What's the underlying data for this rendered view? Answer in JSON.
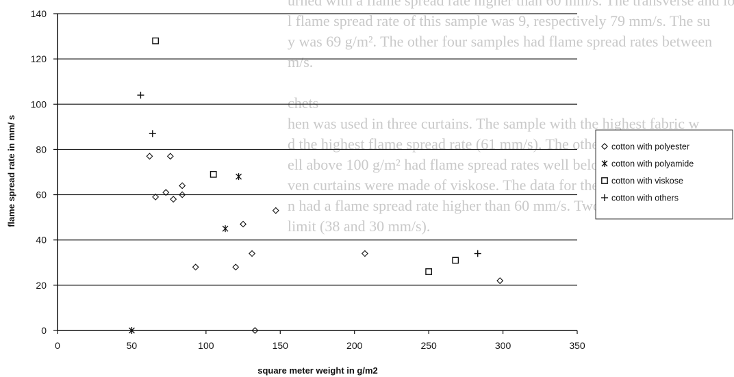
{
  "background_text": {
    "lines": [
      "urned with a flame spread rate higher than 60 mm/s. The transverse and lo",
      "l flame spread rate of this sample was 9, respectively 79 mm/s. The su",
      "y was 69 g/m². The other four samples had flame spread rates between",
      "m/s.",
      "",
      "chets",
      "hen was used in three curtains. The sample with the highest fabric w",
      "d the highest flame spread rate (61 mm/s). The other two with surface",
      "ell above 100 g/m² had flame spread rates well below the limit.",
      "ven curtains were made of viskose. The data for these are given in table 1",
      "n had a flame spread rate higher than 60 mm/s. Two samples were in the",
      "limit (38 and 30 mm/s)."
    ]
  },
  "chart_data": {
    "type": "scatter",
    "xlabel": "square meter weight in g/m2",
    "ylabel": "flame spread rate in mm/ s",
    "xlim": [
      0,
      350
    ],
    "ylim": [
      0,
      140
    ],
    "x_ticks": [
      0,
      50,
      100,
      150,
      200,
      250,
      300,
      350
    ],
    "y_ticks": [
      0,
      20,
      40,
      60,
      80,
      100,
      120,
      140
    ],
    "grid": "horizontal",
    "legend_position": "right",
    "series": [
      {
        "name": "cotton with polyester",
        "marker": "diamond",
        "points": [
          {
            "x": 62,
            "y": 77
          },
          {
            "x": 76,
            "y": 77
          },
          {
            "x": 66,
            "y": 59
          },
          {
            "x": 73,
            "y": 61
          },
          {
            "x": 78,
            "y": 58
          },
          {
            "x": 84,
            "y": 60
          },
          {
            "x": 84,
            "y": 64
          },
          {
            "x": 93,
            "y": 28
          },
          {
            "x": 120,
            "y": 28
          },
          {
            "x": 125,
            "y": 47
          },
          {
            "x": 131,
            "y": 34
          },
          {
            "x": 133,
            "y": 0
          },
          {
            "x": 147,
            "y": 53
          },
          {
            "x": 207,
            "y": 34
          },
          {
            "x": 298,
            "y": 22
          }
        ]
      },
      {
        "name": "cotton with polyamide",
        "marker": "asterisk",
        "points": [
          {
            "x": 50,
            "y": 0
          },
          {
            "x": 113,
            "y": 45
          },
          {
            "x": 122,
            "y": 68
          }
        ]
      },
      {
        "name": "cotton with viskose",
        "marker": "square",
        "points": [
          {
            "x": 66,
            "y": 128
          },
          {
            "x": 105,
            "y": 69
          },
          {
            "x": 250,
            "y": 26
          },
          {
            "x": 268,
            "y": 31
          }
        ]
      },
      {
        "name": "cotton with others",
        "marker": "plus",
        "points": [
          {
            "x": 56,
            "y": 104
          },
          {
            "x": 64,
            "y": 87
          },
          {
            "x": 283,
            "y": 34
          }
        ]
      }
    ]
  }
}
